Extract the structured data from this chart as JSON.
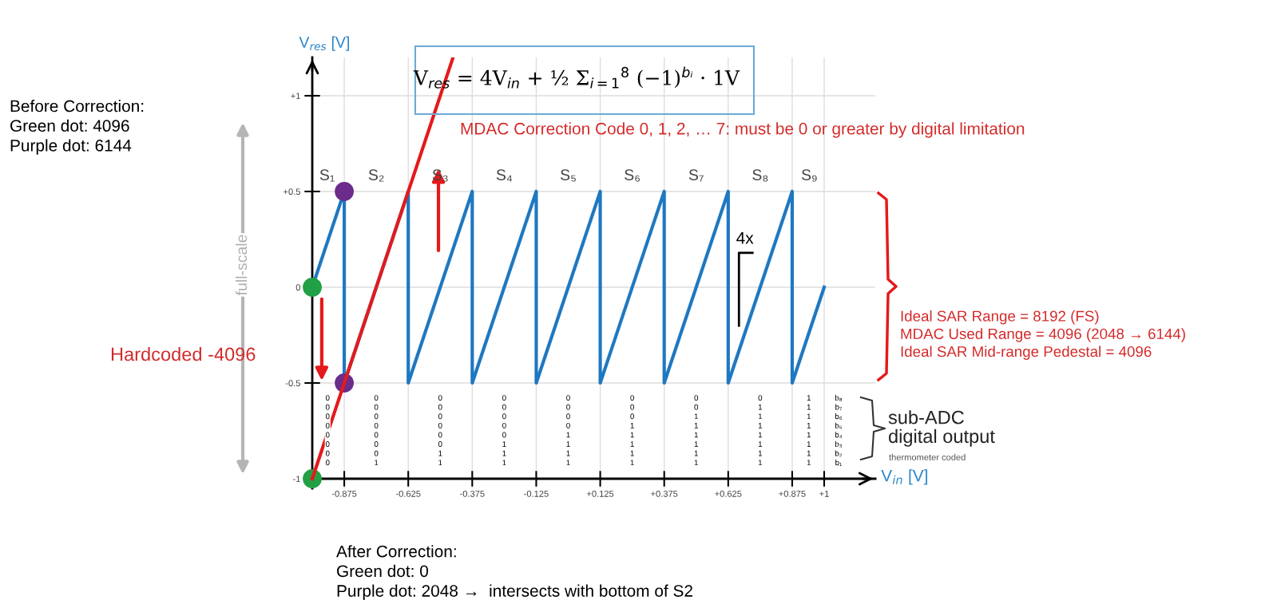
{
  "chart_data": {
    "type": "line",
    "xlabel": "V$_{in}$ [V]",
    "ylabel": "V$_{res}$ [V]",
    "xlim": [
      -1.03,
      1.2
    ],
    "ylim": [
      -1.05,
      1.2
    ],
    "xticks": [
      -0.875,
      -0.625,
      -0.375,
      -0.125,
      {
        "value": 0.125,
        "label": "+0.125"
      },
      {
        "value": 0.375,
        "label": "+0.375"
      },
      {
        "value": 0.625,
        "label": "+0.625"
      },
      {
        "value": 0.875,
        "label": "+0.875"
      },
      {
        "value": 1,
        "label": "+1"
      }
    ],
    "yticks": [
      {
        "value": -1,
        "label": "-1"
      },
      -0.5,
      0,
      {
        "value": 0.5,
        "label": "+0.5"
      },
      {
        "value": 1,
        "label": "+1"
      }
    ],
    "grid": true,
    "series": [
      {
        "color": "#1f78c1",
        "x": [
          -1,
          -0.875,
          -0.875,
          -0.625,
          -0.625,
          -0.375,
          -0.375,
          -0.125,
          -0.125,
          0.125,
          0.125,
          0.375,
          0.375,
          0.625,
          0.625,
          0.875,
          0.875,
          1
        ],
        "values": [
          0,
          0.5,
          -0.5,
          0.5,
          -0.5,
          0.5,
          -0.5,
          0.5,
          -0.5,
          0.5,
          -0.5,
          0.5,
          -0.5,
          0.5,
          -0.5,
          0.5,
          -0.5,
          0
        ]
      },
      {
        "type": "scatter",
        "color": "#22a045",
        "x": [
          -1,
          -1
        ],
        "values": [
          0,
          -1
        ]
      },
      {
        "type": "scatter",
        "color": "#6b2c8c",
        "x": [
          -0.875,
          -0.875
        ],
        "values": [
          0.5,
          -0.5
        ]
      },
      {
        "color": "#e41a1c",
        "x": [
          -1,
          -0.45
        ],
        "values": [
          -1,
          1.2
        ]
      }
    ],
    "annotations": [
      "V$_{res}$ = 4V$_{in}$ + ½ Σ$_{i=1}$$^{8}$ (−1)$^{bᵢ}$ · 1V",
      "MDAC Correction Code 0, 1, 2, … 7: must be 0 or greater by digital limitation",
      "Before Correction:\nGreen dot: 4096\nPurple dot: 6144",
      "Hardcoded -4096",
      "full-scale",
      "Ideal SAR Range = 8192 (FS)\nMDAC Used Range = 4096 (2048 → 6144)\nIdeal SAR Mid-range Pedestal = 4096",
      "sub-ADC\ndigital output",
      "thermometer coded",
      "After Correction:\nGreen dot: 0\nPurple dot: 2048 →  intersects with bottom of S2",
      "4x",
      "S₁",
      "S₂",
      "S₃",
      "S₄",
      "S₅",
      "S₆",
      "S₇",
      "S₈",
      "S₉",
      "0\n0\n0\n0\n0\n0\n0\n0",
      "0\n0\n0\n0\n0\n0\n0\n1",
      "0\n0\n0\n0\n0\n0\n1\n1",
      "0\n0\n0\n0\n0\n1\n1\n1",
      "0\n0\n0\n0\n1\n1\n1\n1",
      "0\n0\n0\n1\n1\n1\n1\n1",
      "0\n0\n1\n1\n1\n1\n1\n1",
      "0\n1\n1\n1\n1\n1\n1\n1",
      "1\n1\n1\n1\n1\n1\n1\n1",
      "b₈\nb₇\nb₆\nb₅\nb₄\nb₃\nb₂\nb₁"
    ]
  }
}
